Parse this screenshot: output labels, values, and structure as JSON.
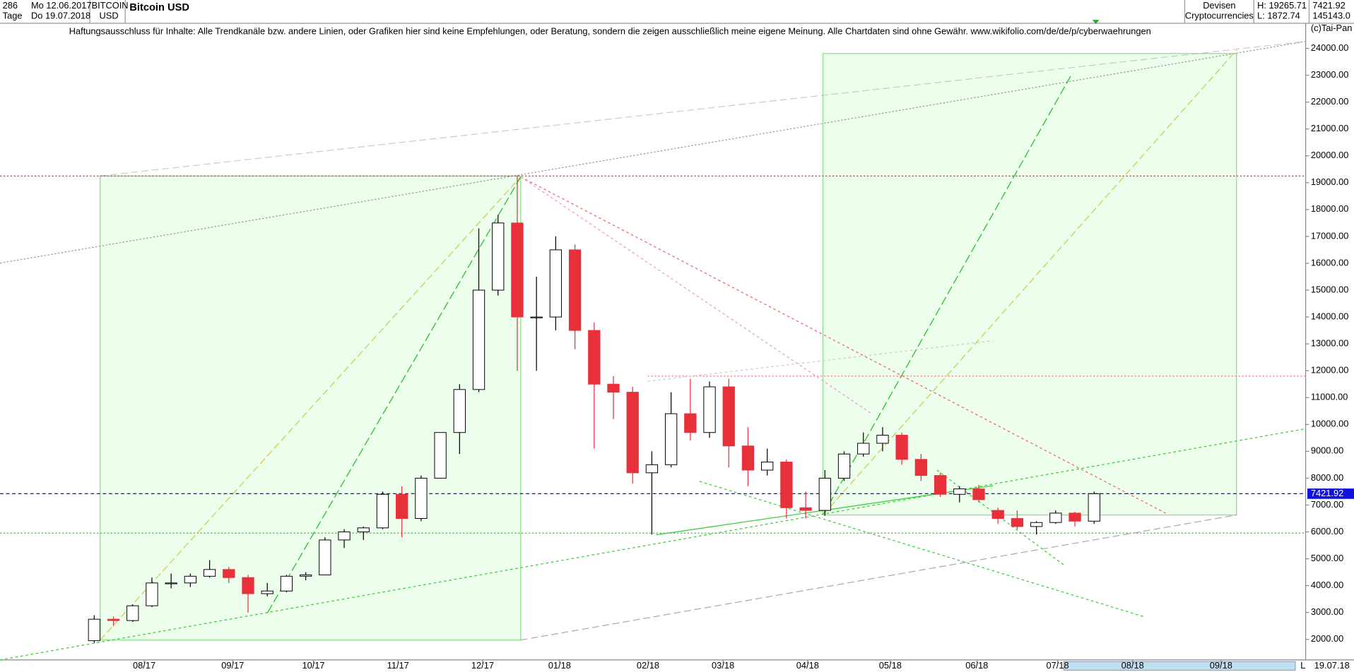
{
  "header": {
    "count": "286",
    "period": "Tage",
    "start": "Mo 12.06.2017",
    "end": "Do 19.07.2018",
    "symbol": "BITCOIN",
    "currency": "USD",
    "group": "Devisen",
    "subgroup": "Cryptocurrencies",
    "high": "H: 19265.71",
    "low": "L: 1872.74",
    "last": "7421.92",
    "volume": "145143.0",
    "disclaimer": "Haftungsausschluss für Inhalte: Alle Trendkanäle bzw. andere Linien, oder Grafiken hier sind keine Empfehlungen, oder Beratung, sondern die zeigen ausschließlich meine eigene Meinung. Alle Chartdaten sind ohne Gewähr.  www.wikifolio.com/de/de/p/cyberwaehrungen",
    "copyright": "(c)Tai-Pan",
    "footer_mode": "L",
    "footer_date": "19.07.18"
  },
  "chart_data": {
    "type": "candlestick",
    "title": "Bitcoin USD",
    "colors": {
      "up": "#ffffff",
      "down": "#e8303a",
      "outline": "#000000",
      "last": "#1010e0"
    },
    "xlim": [
      -4.9,
      63
    ],
    "xticks": [
      {
        "value": 2.6,
        "label": "08/17"
      },
      {
        "value": 7.2,
        "label": "09/17"
      },
      {
        "value": 11.4,
        "label": "10/17"
      },
      {
        "value": 15.8,
        "label": "11/17"
      },
      {
        "value": 20.2,
        "label": "12/17"
      },
      {
        "value": 24.2,
        "label": "01/18"
      },
      {
        "value": 28.8,
        "label": "02/18"
      },
      {
        "value": 32.7,
        "label": "03/18"
      },
      {
        "value": 37.1,
        "label": "04/18"
      },
      {
        "value": 41.4,
        "label": "05/18"
      },
      {
        "value": 45.9,
        "label": "06/18"
      },
      {
        "value": 50.1,
        "label": "07/18"
      },
      {
        "value": 54.0,
        "label": "08/18"
      },
      {
        "value": 58.6,
        "label": "09/18"
      }
    ],
    "ylim": [
      1300,
      24900
    ],
    "yticks": [
      {
        "value": 2000,
        "label": "2000.00"
      },
      {
        "value": 3000,
        "label": "3000.00"
      },
      {
        "value": 4000,
        "label": "4000.00"
      },
      {
        "value": 5000,
        "label": "5000.00"
      },
      {
        "value": 6000,
        "label": "6000.00"
      },
      {
        "value": 7000,
        "label": "7000.00"
      },
      {
        "value": 8000,
        "label": "8000.00"
      },
      {
        "value": 9000,
        "label": "9000.00"
      },
      {
        "value": 10000,
        "label": "10000.00"
      },
      {
        "value": 11000,
        "label": "11000.00"
      },
      {
        "value": 12000,
        "label": "12000.00"
      },
      {
        "value": 13000,
        "label": "13000.00"
      },
      {
        "value": 14000,
        "label": "14000.00"
      },
      {
        "value": 15000,
        "label": "15000.00"
      },
      {
        "value": 16000,
        "label": "16000.00"
      },
      {
        "value": 17000,
        "label": "17000.00"
      },
      {
        "value": 18000,
        "label": "18000.00"
      },
      {
        "value": 19000,
        "label": "19000.00"
      },
      {
        "value": 20000,
        "label": "20000.00"
      },
      {
        "value": 21000,
        "label": "21000.00"
      },
      {
        "value": 22000,
        "label": "22000.00"
      },
      {
        "value": 23000,
        "label": "23000.00"
      },
      {
        "value": 24000,
        "label": "24000.00"
      }
    ],
    "grid": false,
    "last_price": 7421.92,
    "open": [
      1950,
      2750,
      2700,
      3250,
      4100,
      4100,
      4350,
      4600,
      4300,
      3700,
      3800,
      4350,
      4400,
      5700,
      6000,
      6150,
      7400,
      6500,
      8000,
      9700,
      11300,
      15000,
      17500,
      14000,
      14000,
      16500,
      13500,
      11500,
      11200,
      8200,
      8500,
      10400,
      9700,
      11400,
      9200,
      8300,
      8600,
      6900,
      6800,
      8000,
      8900,
      9300,
      9600,
      8700,
      8100,
      7400,
      7600,
      6800,
      6500,
      6200,
      6350,
      6700,
      6400
    ],
    "high": [
      2900,
      2850,
      3300,
      4300,
      4450,
      4450,
      4950,
      4700,
      4400,
      4100,
      4400,
      4500,
      5800,
      6100,
      6200,
      7500,
      7700,
      8100,
      9700,
      11500,
      17300,
      17800,
      19265.71,
      15500,
      17000,
      16700,
      13800,
      11800,
      11400,
      9000,
      11200,
      11700,
      11600,
      11700,
      9900,
      9100,
      8700,
      7500,
      8300,
      9000,
      9700,
      9900,
      9700,
      8900,
      8200,
      7700,
      7750,
      6900,
      6800,
      6400,
      6800,
      6750,
      7500
    ],
    "low": [
      1872.74,
      2500,
      2650,
      3200,
      3900,
      3950,
      4300,
      4100,
      3000,
      3600,
      3750,
      4200,
      4400,
      5400,
      5700,
      6100,
      5800,
      6400,
      8000,
      8900,
      11200,
      14800,
      12000,
      12000,
      13500,
      12800,
      9100,
      10200,
      7800,
      5900,
      8400,
      9400,
      9500,
      8400,
      7700,
      8100,
      6500,
      6500,
      6600,
      7900,
      8800,
      9000,
      8500,
      7900,
      7300,
      7100,
      7100,
      6300,
      6100,
      5900,
      6300,
      6200,
      6300
    ],
    "close": [
      2750,
      2700,
      3250,
      4100,
      4100,
      4350,
      4600,
      4300,
      3700,
      3800,
      4350,
      4400,
      5700,
      6000,
      6150,
      7400,
      6500,
      8000,
      9700,
      11300,
      15000,
      17500,
      14000,
      14000,
      16500,
      13500,
      11500,
      11200,
      8200,
      8500,
      10400,
      9700,
      11400,
      9200,
      8300,
      8600,
      6900,
      6800,
      8000,
      8900,
      9300,
      9600,
      8700,
      8100,
      7400,
      7600,
      7200,
      6500,
      6200,
      6350,
      6700,
      6400,
      7421.92
    ]
  }
}
